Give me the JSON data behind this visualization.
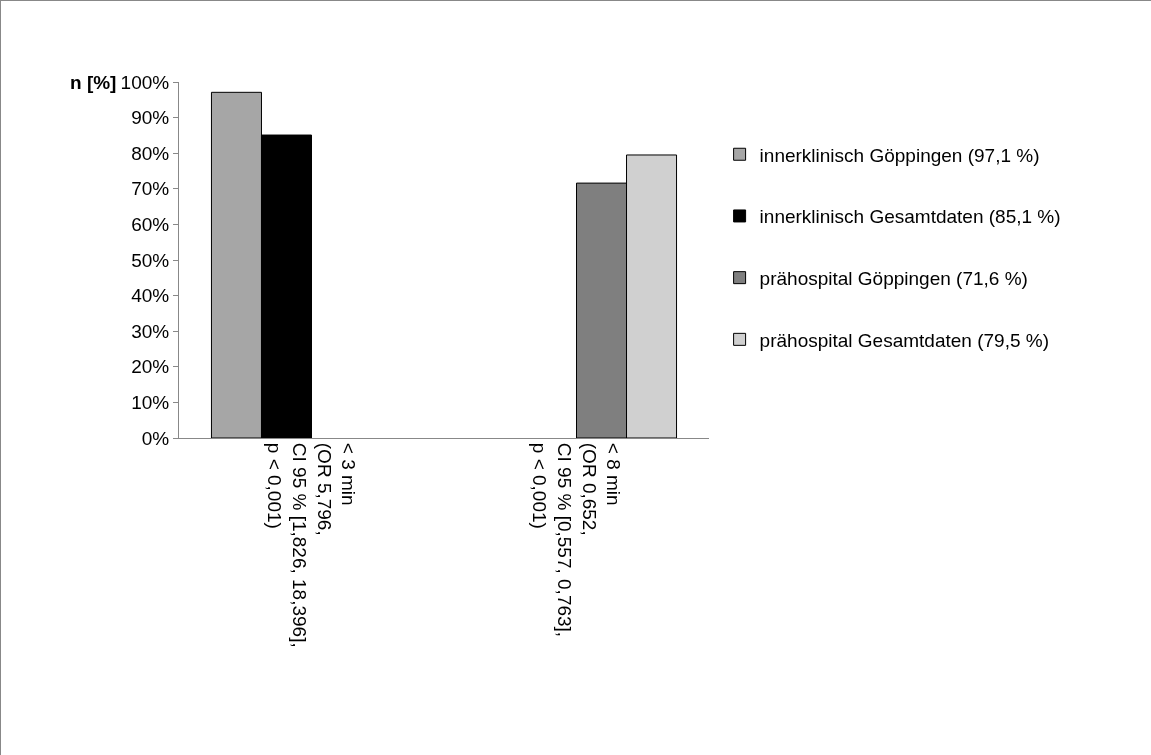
{
  "chart_data": {
    "type": "bar",
    "ylabel": "n [%]",
    "categories": [
      "< 3 min\n(OR 5,796,\nCI 95 % [1,826, 18,396],\np < 0,001)",
      "< 8 min\n(OR 0,652,\nCI 95 % [0,557, 0,763],\np < 0,001)"
    ],
    "series": [
      {
        "name": "innerklinisch Göppingen (97,1 %)",
        "color": "#a6a6a6",
        "values": [
          97.1,
          null
        ]
      },
      {
        "name": "innerklinisch Gesamtdaten (85,1 %)",
        "color": "#000000",
        "values": [
          85.1,
          null
        ]
      },
      {
        "name": "prähospital Göppingen (71,6 %)",
        "color": "#7f7f7f",
        "values": [
          null,
          71.6
        ]
      },
      {
        "name": "prähospital Gesamtdaten (79,5 %)",
        "color": "#d0d0d0",
        "values": [
          null,
          79.5
        ]
      }
    ],
    "ylim": [
      0,
      100
    ],
    "yticks": [
      {
        "value": 0,
        "label": "0%"
      },
      {
        "value": 10,
        "label": "10%"
      },
      {
        "value": 20,
        "label": "20%"
      },
      {
        "value": 30,
        "label": "30%"
      },
      {
        "value": 40,
        "label": "40%"
      },
      {
        "value": 50,
        "label": "50%"
      },
      {
        "value": 60,
        "label": "60%"
      },
      {
        "value": 70,
        "label": "70%"
      },
      {
        "value": 80,
        "label": "80%"
      },
      {
        "value": 90,
        "label": "90%"
      },
      {
        "value": 100,
        "label": "100%"
      }
    ],
    "grid": false,
    "legend": "right"
  }
}
